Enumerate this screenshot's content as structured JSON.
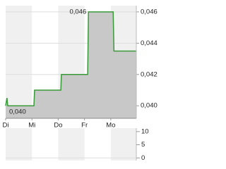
{
  "chart_data": [
    {
      "type": "area",
      "x": [
        0,
        0.05,
        0.08,
        1.075,
        1.1,
        2.1,
        2.12,
        3.12,
        3.15,
        4.09,
        4.12,
        4.97
      ],
      "series": [
        {
          "color": "#3a9a3a",
          "fill": "#c8c8c8",
          "values": [
            0.04,
            0.0405,
            0.04,
            0.04,
            0.041,
            0.041,
            0.042,
            0.042,
            0.046,
            0.046,
            0.0435,
            0.0435
          ]
        }
      ],
      "xlim": [
        0,
        4.97
      ],
      "xticks": [
        {
          "value": 0,
          "label": "Di"
        },
        {
          "value": 1,
          "label": "Mi"
        },
        {
          "value": 2,
          "label": "Do"
        },
        {
          "value": 3,
          "label": "Fr"
        },
        {
          "value": 4,
          "label": "Mo"
        }
      ],
      "ylim": [
        0.0392,
        0.0464
      ],
      "yticks": [
        {
          "value": 0.04,
          "label": "0,040"
        },
        {
          "value": 0.042,
          "label": "0,042"
        },
        {
          "value": 0.044,
          "label": "0,044"
        },
        {
          "value": 0.046,
          "label": "0,046"
        }
      ],
      "annotations": [
        {
          "x": 3.15,
          "y": 0.046,
          "label": "0,046"
        },
        {
          "x": 0.08,
          "y": 0.04,
          "label": "0,040"
        }
      ],
      "grid": true
    },
    {
      "type": "bar",
      "ylim": [
        -1,
        11.3
      ],
      "yticks": [
        0,
        5,
        10
      ]
    }
  ]
}
